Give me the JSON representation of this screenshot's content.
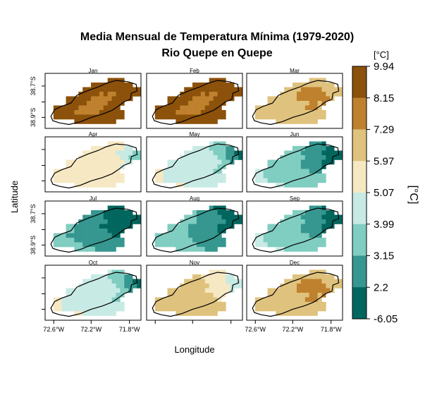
{
  "chart_data": {
    "type": "heatmap",
    "title": "Media Mensual de Temperatura Mínima (1979-2020)",
    "subtitle": "Rio Quepe en Quepe",
    "xlabel": "Longitude",
    "ylabel": "Latitude",
    "x_ticks": [
      "72.6°W",
      "72.2°W",
      "71.8°W"
    ],
    "y_ticks": [
      "38.9°S",
      "38.7°S"
    ],
    "colorbar": {
      "unit_top": "[°C]",
      "label": "[°C]",
      "breaks": [
        "9.94",
        "8.15",
        "7.29",
        "5.97",
        "5.07",
        "3.99",
        "3.15",
        "2.2",
        "-6.05"
      ],
      "colors": [
        "#8c510a",
        "#bf812d",
        "#dfc27d",
        "#f6e8c3",
        "#c7eae5",
        "#80cdc1",
        "#35978f",
        "#01665e"
      ]
    },
    "panels": [
      {
        "month": "Jan",
        "classes": [
          "eeeeeeeeeeeeeeeeeeeeeee",
          "eeeeeeeeeeeeeee0000eeee",
          "eeeeeeeeeee0000000000ee",
          "eeeeeeeee00000000000000",
          "eeeeeeee000001011000000",
          "eeeee0000001111100000ee",
          "eeeee00000111110000eeee",
          "ee0000001111110000eeeee",
          "ee00000111111000000eeee",
          "ee00000000000000000eeee",
          "eeeeeee0000000000eeeeee",
          "eeeeeeeeeeeeeeeeeeeeeee"
        ]
      },
      {
        "month": "Feb",
        "classes": [
          "eeeeeeeeeeeeeeeeeeeeeee",
          "eeeeeeeeeeeeeee0000eeee",
          "eeeeeeeeeee0000000000ee",
          "eeeeeeeee00000000000000",
          "eeeeeeee000001011000000",
          "eeeee0000001111100000ee",
          "eeeee00000111110000eeee",
          "ee0000001111110000eeeee",
          "ee00000111111000000eeee",
          "ee00000000000000000eeee",
          "eeeeeee0000000000eeeeee",
          "eeeeeeeeeeeeeeeeeeeeeee"
        ]
      },
      {
        "month": "Mar",
        "classes": [
          "eeeeeeeeeeeeeeeeeeeeeee",
          "eeeeeeeeeeeeeee2222eeee",
          "eeeeeeeeeee2222222222ee",
          "eeeeeeeee22221111122222",
          "eeeeeeee222211111112222",
          "eeeee2222222111111112ee",
          "eeeee22222222221121eeee",
          "ee2222222222221112eeeee",
          "ee22222222222222222eeee",
          "ee22222222222222222eeee",
          "eeeeeee2222222222eeeeee",
          "eeeeeeeeeeeeeeeeeeeeeee"
        ]
      },
      {
        "month": "Apr",
        "classes": [
          "eeeeeeeeeeeeeeeeeeeeeee",
          "eeeeeeeeeeeeeee3333eeee",
          "eeeeeeeeeee3333333344ee",
          "eeeeeeeee33333333444455",
          "eeeeeeee333333333344555",
          "eeeee3333333333333344ee",
          "eeeee33333333333334eeee",
          "ee3333333333333333eeeee",
          "ee33333333333333333eeee",
          "ee33333333333333333eeee",
          "eeeeeee3333333333eeeeee",
          "eeeeeeeeeeeeeeeeeeeeeee"
        ]
      },
      {
        "month": "May",
        "classes": [
          "eeeeeeeeeeeeeeeeeeeeeee",
          "eeeeeeeeeeeeeee4555eeee",
          "eeeeeeeeeee4444555566ee",
          "eeeeeeeee44444445556677",
          "eeeeeeee444444444556667",
          "eeeee4444444444444556ee",
          "eeeee44444444444455eeee",
          "ee3344444444444455eeeee",
          "ee33444444444444444eeee",
          "ee33444444444444444eeee",
          "eeeeeee3344444444eeeeee",
          "eeeeeeeeeeeeeeeeeeeeeee"
        ]
      },
      {
        "month": "Jun",
        "classes": [
          "eeeeeeeeeeeeeeeeeeeeeee",
          "eeeeeeeeeeeeeee6667eeee",
          "eeeeeeeeeee5556666677ee",
          "eeeeeeeee55556666677777",
          "eeeeeeee555555666667777",
          "eeeee5555555566666777ee",
          "eeeee55555555666667eeee",
          "ee4455555555555666eeeee",
          "ee44555555555555555eeee",
          "ee44455555555555555eeee",
          "eeeeeee4455555555eeeeee",
          "eeeeeeeeeeeeeeeeeeeeeee"
        ]
      },
      {
        "month": "Jul",
        "classes": [
          "eeeeeeeeeeeeeeeeeeeeeee",
          "eeeeeeeeeeeeeee7777eeee",
          "eeeeeeeeeee6667777777ee",
          "eeeeeeeee66666777777777",
          "eeeeeeee666666677777777",
          "eeeee5566666677777777ee",
          "eeeee55666666667777eeee",
          "ee5556666666666677eeeee",
          "ee55555666666666666eeee",
          "ee55555556666666666eeee",
          "eeeeeee5555566666eeeeee",
          "eeeeeeeeeeeeeeeeeeeeeee"
        ]
      },
      {
        "month": "Aug",
        "classes": [
          "eeeeeeeeeeeeeeeeeeeeeee",
          "eeeeeeeeeeeeeee6777eeee",
          "eeeeeeeeeee5666667777ee",
          "eeeeeeeee55566666677777",
          "eeeeeeee555566666667777",
          "eeeee5555566666667777ee",
          "eeeee55555666666677eeee",
          "ee5555555566666666eeeee",
          "ee55555555566666666eeee",
          "ee55555555556666666eeee",
          "eeeeeee5555555666eeeeee",
          "eeeeeeeeeeeeeeeeeeeeeee"
        ]
      },
      {
        "month": "Sep",
        "classes": [
          "eeeeeeeeeeeeeeeeeeeeeee",
          "eeeeeeeeeeeeeee6667eeee",
          "eeeeeeeeeee5556666677ee",
          "eeeeeeeee55556666677777",
          "eeeeeeee555555666667777",
          "eeeee5555555566666777ee",
          "eeeee55555555666667eeee",
          "ee4455555555555666eeeee",
          "ee44555555555555555eeee",
          "ee44455555555555555eeee",
          "eeeeeee4455555555eeeeee",
          "eeeeeeeeeeeeeeeeeeeeeee"
        ]
      },
      {
        "month": "Oct",
        "classes": [
          "eeeeeeeeeeeeeeeeeeeeeee",
          "eeeeeeeeeeeeeee4555eeee",
          "eeeeeeeeeee4444555566ee",
          "eeeeeeeee44444445556677",
          "eeeeeeee444444444556667",
          "eeeee4444444444444556ee",
          "eeeee44444444444455eeee",
          "ee3344444444444455eeeee",
          "ee33444444444444444eeee",
          "ee33444444444444444eeee",
          "eeeeeee3344444444eeeeee",
          "eeeeeeeeeeeeeeeeeeeeeee"
        ]
      },
      {
        "month": "Nov",
        "classes": [
          "eeeeeeeeeeeeeeeeeeeeeee",
          "eeeeeeeeeeeeeee3333eeee",
          "eeeeeeeeeee2233333344ee",
          "eeeeeeeee22222333334444",
          "eeeeeeee222222233333444",
          "eeeee2222222223333334ee",
          "eeeee22222222222333eeee",
          "ee2222222222222223eeeee",
          "ee22222222222222222eeee",
          "ee22222222222222222eeee",
          "eeeeeee2222222222eeeeee",
          "eeeeeeeeeeeeeeeeeeeeeee"
        ]
      },
      {
        "month": "Dec",
        "classes": [
          "eeeeeeeeeeeeeeeeeeeeeee",
          "eeeeeeeeeeeeeee2222eeee",
          "eeeeeeeeeee2222222222ee",
          "eeeeeeeee22221111122222",
          "eeeeeeee222211111112222",
          "eeeee2222222111111112ee",
          "eeeee22222222221121eeee",
          "ee2222222222221112eeeee",
          "ee22222222222222222eeee",
          "ee22222222222222222eeee",
          "eeeeeee2222222222eeeeee",
          "eeeeeeeeeeeeeeeeeeeeeee"
        ]
      }
    ]
  }
}
